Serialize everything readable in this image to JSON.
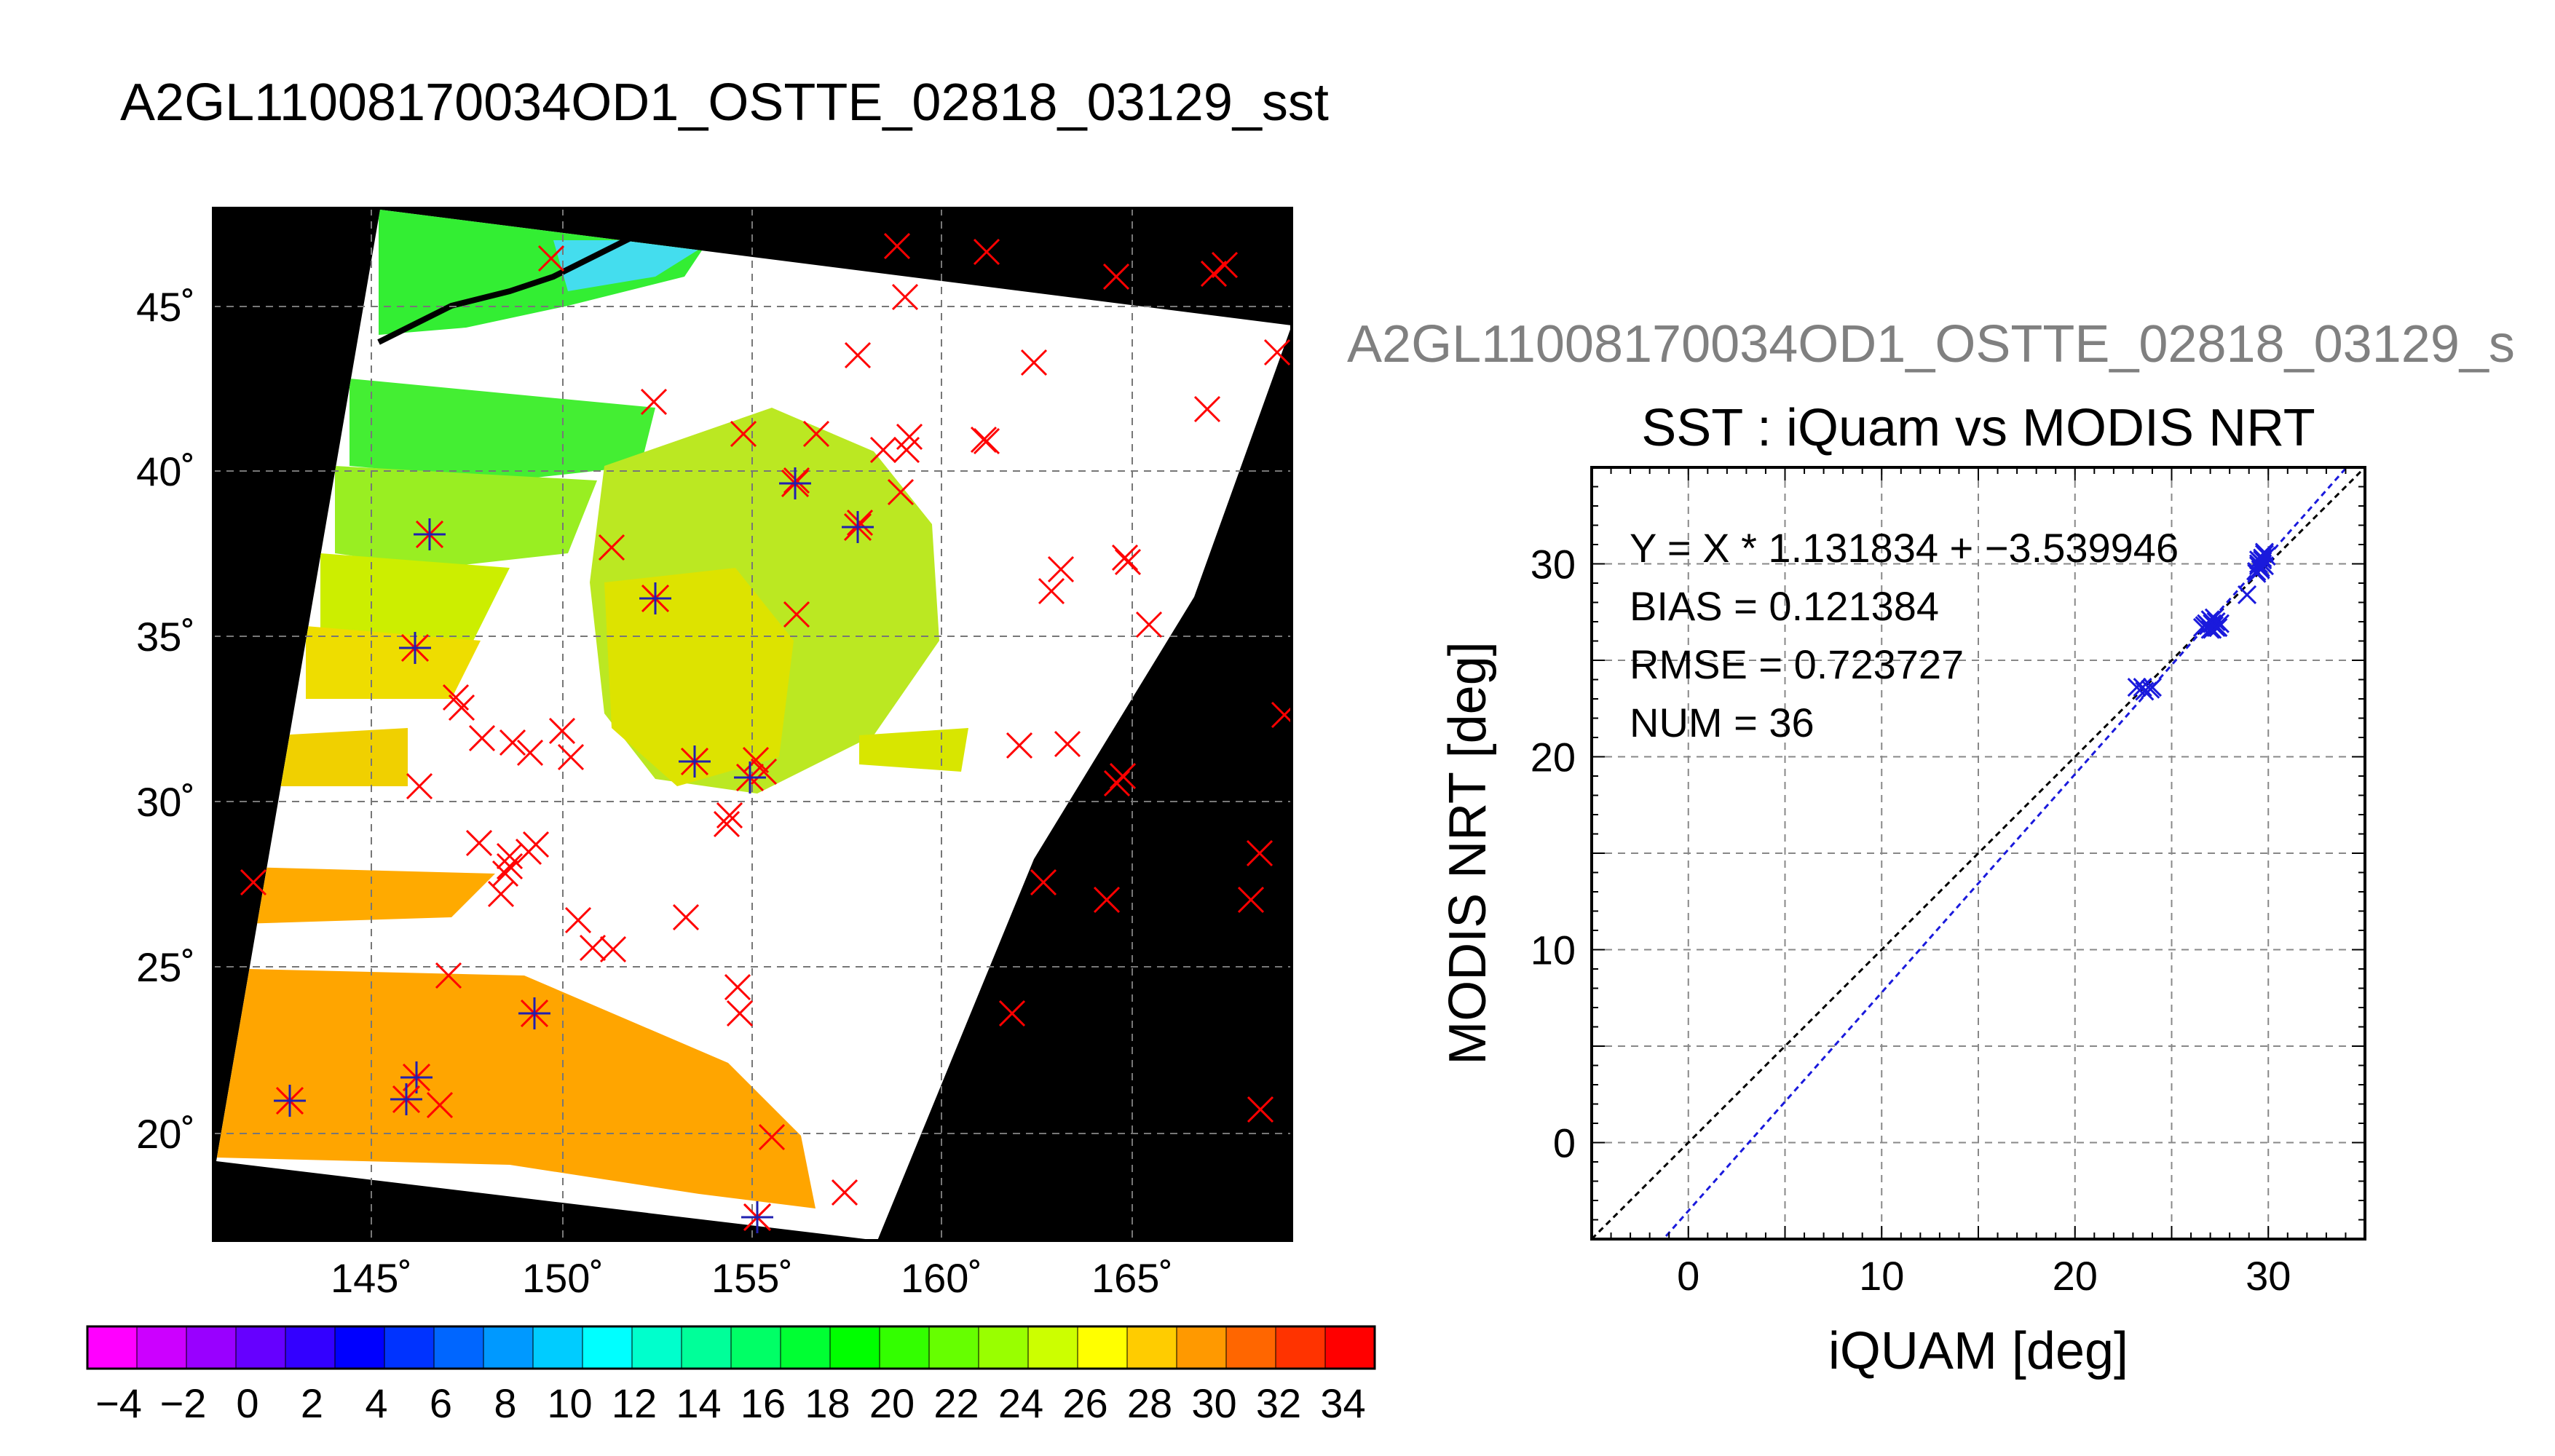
{
  "page": {
    "title": "A2GL11008170034OD1_OSTTE_02818_03129_sst",
    "secondary_title": "A2GL11008170034OD1_OSTTE_02818_03129_s"
  },
  "map": {
    "lat_ticks": [
      "20˚",
      "25˚",
      "30˚",
      "35˚",
      "40˚",
      "45˚"
    ],
    "lon_ticks": [
      "145˚",
      "150˚",
      "155˚",
      "160˚",
      "165˚"
    ],
    "colors": {
      "background": "#000000",
      "cloud": "#ffffff",
      "matchup_x": "#ff0000",
      "matchup_star": "#2020b0"
    }
  },
  "colorbar": {
    "tick_labels": [
      "−4",
      "−2",
      "0",
      "2",
      "4",
      "6",
      "8",
      "10",
      "12",
      "14",
      "16",
      "18",
      "20",
      "22",
      "24",
      "26",
      "28",
      "30",
      "32",
      "34"
    ],
    "colors": [
      "#ff00ff",
      "#cc00ff",
      "#9900ff",
      "#6600ff",
      "#3300ff",
      "#0000ff",
      "#0033ff",
      "#0066ff",
      "#0099ff",
      "#00ccff",
      "#00ffff",
      "#00ffcc",
      "#00ff99",
      "#00ff66",
      "#00ff33",
      "#00ff00",
      "#33ff00",
      "#66ff00",
      "#99ff00",
      "#ccff00",
      "#ffff00",
      "#ffcc00",
      "#ff9900",
      "#ff6600",
      "#ff3300",
      "#ff0000"
    ]
  },
  "chart_data": {
    "type": "scatter",
    "title": "SST : iQuam vs MODIS NRT",
    "xlabel": "iQUAM [deg]",
    "ylabel": "MODIS NRT [deg]",
    "xlim": [
      -5,
      35
    ],
    "ylim": [
      -5,
      35
    ],
    "x_ticks": [
      0,
      10,
      20,
      30
    ],
    "y_ticks": [
      0,
      10,
      20,
      30
    ],
    "grid": true,
    "annotations": [
      "Y = X * 1.131834 + −3.539946",
      "BIAS = 0.121384",
      "RMSE = 0.723727",
      "NUM = 36"
    ],
    "regression": {
      "slope": 1.131834,
      "intercept": -3.539946,
      "color": "#1a1adc"
    },
    "identity_line": {
      "color": "#000000"
    },
    "marker_color": "#1a1adc",
    "series": [
      {
        "x": [
          23.2,
          23.5,
          23.9,
          24.0,
          26.6,
          26.8,
          27.0,
          27.1,
          27.2,
          27.3,
          27.4,
          27.5,
          27.0,
          26.9,
          27.2,
          27.4,
          28.9,
          29.4,
          29.5,
          29.6,
          29.7,
          29.8,
          29.5,
          29.6,
          29.7,
          29.8,
          29.9,
          29.6,
          29.7,
          29.5,
          26.7,
          27.1,
          27.3,
          23.6,
          29.8,
          29.4
        ],
        "y": [
          23.6,
          23.6,
          23.5,
          23.6,
          26.7,
          26.9,
          27.1,
          26.6,
          26.8,
          27.0,
          26.7,
          26.9,
          26.6,
          26.8,
          27.2,
          26.7,
          28.4,
          29.6,
          29.9,
          30.1,
          30.3,
          30.5,
          30.0,
          29.7,
          30.2,
          30.6,
          30.4,
          29.8,
          30.0,
          30.2,
          26.8,
          26.9,
          26.7,
          23.4,
          29.9,
          29.5
        ]
      }
    ]
  }
}
